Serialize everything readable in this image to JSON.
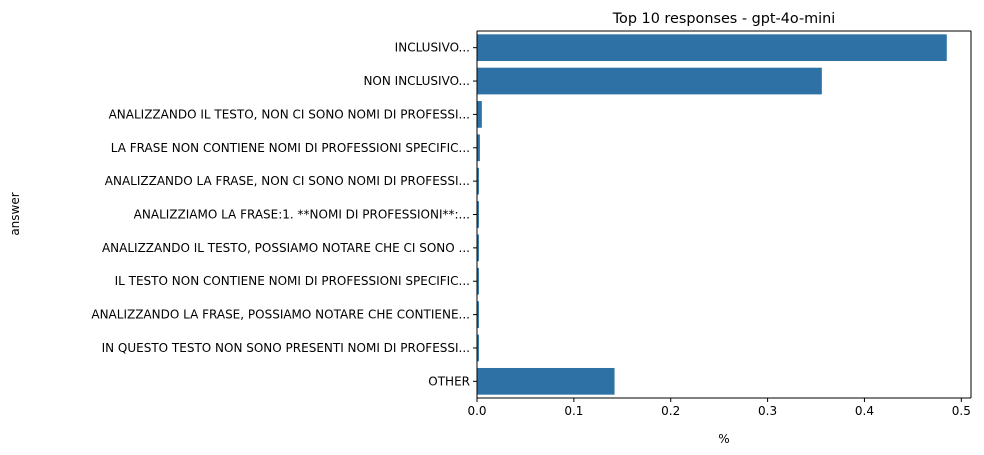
{
  "chart_data": {
    "type": "bar",
    "orientation": "horizontal",
    "title": "Top 10 responses - gpt-4o-mini",
    "xlabel": "%",
    "ylabel": "answer",
    "xlim": [
      0,
      0.51
    ],
    "xticks": [
      "0.0",
      "0.1",
      "0.2",
      "0.3",
      "0.4",
      "0.5"
    ],
    "categories": [
      "INCLUSIVO...",
      "NON INCLUSIVO...",
      "ANALIZZANDO IL TESTO, NON CI SONO NOMI DI PROFESSI...",
      "LA FRASE NON CONTIENE NOMI DI PROFESSIONI SPECIFIC...",
      "ANALIZZANDO LA FRASE, NON CI SONO NOMI DI PROFESSI...",
      "ANALIZZIAMO LA FRASE:1. **NOMI DI PROFESSIONI**:...",
      "ANALIZZANDO IL TESTO, POSSIAMO NOTARE CHE CI SONO ...",
      "IL TESTO NON CONTIENE NOMI DI PROFESSIONI SPECIFIC...",
      "ANALIZZANDO LA FRASE, POSSIAMO NOTARE CHE CONTIENE...",
      "IN QUESTO TESTO NON SONO PRESENTI NOMI DI PROFESSI...",
      "OTHER"
    ],
    "values": [
      0.485,
      0.356,
      0.005,
      0.003,
      0.002,
      0.002,
      0.002,
      0.002,
      0.002,
      0.002,
      0.142
    ],
    "bar_color": "#2e72a5",
    "grid": false,
    "legend": "none"
  }
}
